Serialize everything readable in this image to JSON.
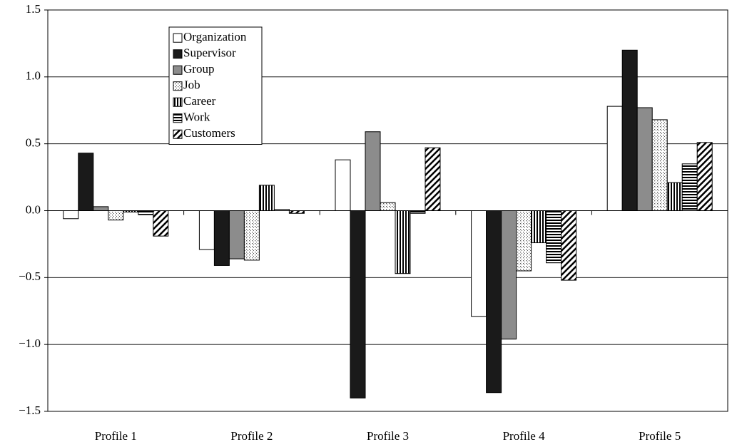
{
  "chart_data": {
    "type": "bar",
    "categories": [
      "Profile 1",
      "Profile 2",
      "Profile 3",
      "Profile 4",
      "Profile 5"
    ],
    "series": [
      {
        "name": "Organization",
        "color": "#ffffff",
        "pattern": "solid",
        "values": [
          -0.06,
          -0.29,
          0.38,
          -0.79,
          0.78
        ]
      },
      {
        "name": "Supervisor",
        "color": "#1a1a1a",
        "pattern": "solid",
        "values": [
          0.43,
          -0.41,
          -1.4,
          -1.36,
          1.2
        ]
      },
      {
        "name": "Group",
        "color": "#8c8c8c",
        "pattern": "solid",
        "values": [
          0.03,
          -0.36,
          0.59,
          -0.96,
          0.77
        ]
      },
      {
        "name": "Job",
        "color": "#555555",
        "pattern": "dots",
        "values": [
          -0.07,
          -0.37,
          0.06,
          -0.45,
          0.68
        ]
      },
      {
        "name": "Career",
        "color": "#000000",
        "pattern": "vertical",
        "values": [
          -0.01,
          0.19,
          -0.47,
          -0.24,
          0.21
        ]
      },
      {
        "name": "Work",
        "color": "#000000",
        "pattern": "horizontal",
        "values": [
          -0.03,
          0.01,
          -0.02,
          -0.39,
          0.35
        ]
      },
      {
        "name": "Customers",
        "color": "#000000",
        "pattern": "diagonal",
        "values": [
          -0.19,
          -0.02,
          0.47,
          -0.52,
          0.51
        ]
      }
    ],
    "ylim": [
      -1.5,
      1.5
    ],
    "yticks": [
      {
        "value": -1.5,
        "label": "−1.5"
      },
      {
        "value": -1.0,
        "label": "−1.0"
      },
      {
        "value": -0.5,
        "label": "−0.5"
      },
      {
        "value": 0,
        "label": "0.0"
      },
      0.5,
      {
        "value": 1.0,
        "label": "1.0"
      },
      1.5
    ],
    "grid": true,
    "legend": "upper left"
  }
}
